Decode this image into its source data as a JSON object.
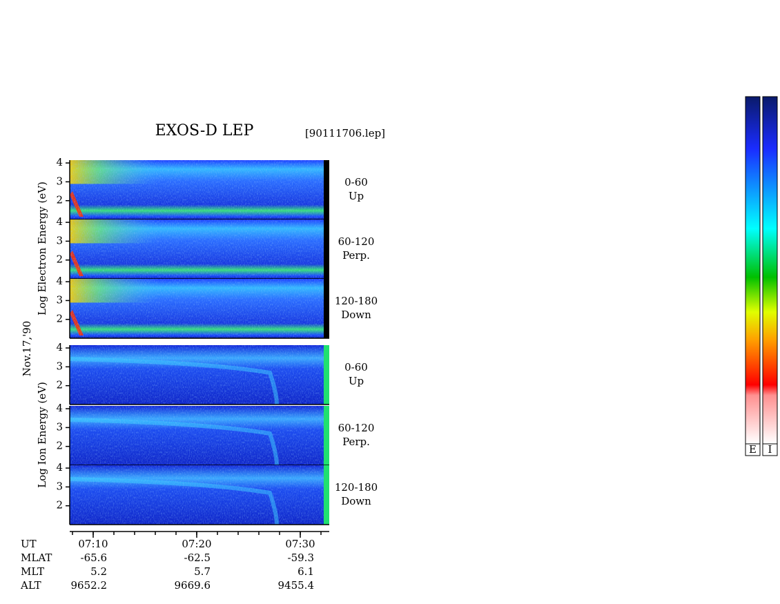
{
  "title": "EXOS-D LEP",
  "file": "[90111706.lep]",
  "date": "Nov.17,'90",
  "electron_axis_label": "Log  Electron  Energy  (eV)",
  "ion_axis_label": "Log  Ion  Energy  (eV)",
  "ylim": [
    1,
    4.15
  ],
  "yticks": [
    2,
    3,
    4
  ],
  "panels": [
    {
      "species": "electron",
      "pitch": "0-60",
      "direction": "Up"
    },
    {
      "species": "electron",
      "pitch": "60-120",
      "direction": "Perp."
    },
    {
      "species": "electron",
      "pitch": "120-180",
      "direction": "Down"
    },
    {
      "species": "ion",
      "pitch": "0-60",
      "direction": "Up"
    },
    {
      "species": "ion",
      "pitch": "60-120",
      "direction": "Perp."
    },
    {
      "species": "ion",
      "pitch": "120-180",
      "direction": "Down"
    }
  ],
  "time_axis": {
    "row_labels": [
      "UT",
      "MLAT",
      "MLT",
      "ALT"
    ],
    "columns": [
      [
        "07:10",
        -65.6,
        5.2,
        9652.2
      ],
      [
        "07:20",
        -62.5,
        5.7,
        9669.6
      ],
      [
        "07:30",
        -59.3,
        6.1,
        9455.4
      ]
    ]
  },
  "colorbars": [
    "E",
    "I"
  ]
}
